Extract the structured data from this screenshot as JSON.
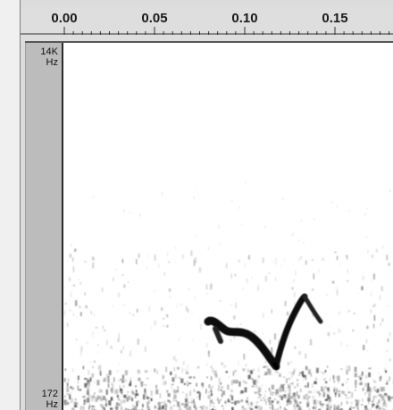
{
  "time_ruler": {
    "ticks": [
      {
        "label": "0.00",
        "value": 0.0
      },
      {
        "label": "0.05",
        "value": 0.05
      },
      {
        "label": "0.10",
        "value": 0.1
      },
      {
        "label": "0.15",
        "value": 0.15
      }
    ]
  },
  "frequency_axis": {
    "top_label_value": "14K",
    "top_label_unit": "Hz",
    "bottom_label_value": "172",
    "bottom_label_unit": "Hz"
  },
  "colors": {
    "ink": "#111111",
    "axis_bar": "#bcbcbc",
    "background": "#ffffff"
  }
}
